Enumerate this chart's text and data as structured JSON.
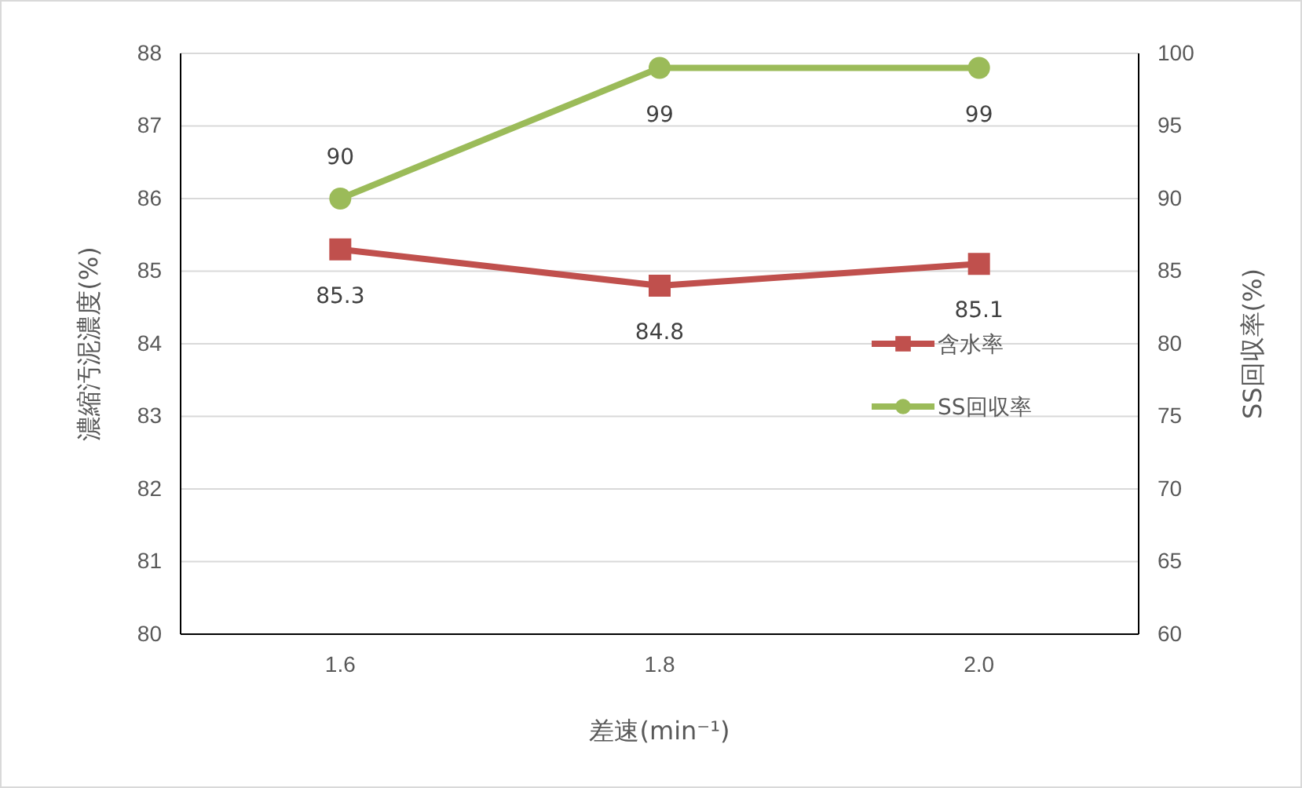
{
  "chart_data": {
    "type": "line",
    "categories": [
      "1.6",
      "1.8",
      "2.0"
    ],
    "xlabel": "差速(min⁻¹)",
    "ylabel": "濃縮汚泥濃度(%)",
    "y2label": "SS回収率(%)",
    "ylim": [
      80,
      88
    ],
    "yticks": [
      80,
      81,
      82,
      83,
      84,
      85,
      86,
      87,
      88
    ],
    "y2lim": [
      60,
      100
    ],
    "y2ticks": [
      60,
      65,
      70,
      75,
      80,
      85,
      90,
      95,
      100
    ],
    "grid": "y",
    "legend": "right",
    "data_labels": true,
    "series": [
      {
        "name": "含水率",
        "color": "#c0504d",
        "marker": "square",
        "values": [
          85.3,
          84.8,
          85.1
        ]
      },
      {
        "name": "SS回収率",
        "color": "#9bbb59",
        "marker": "circle",
        "axis": "y2",
        "values": [
          90,
          99,
          99
        ]
      }
    ]
  }
}
